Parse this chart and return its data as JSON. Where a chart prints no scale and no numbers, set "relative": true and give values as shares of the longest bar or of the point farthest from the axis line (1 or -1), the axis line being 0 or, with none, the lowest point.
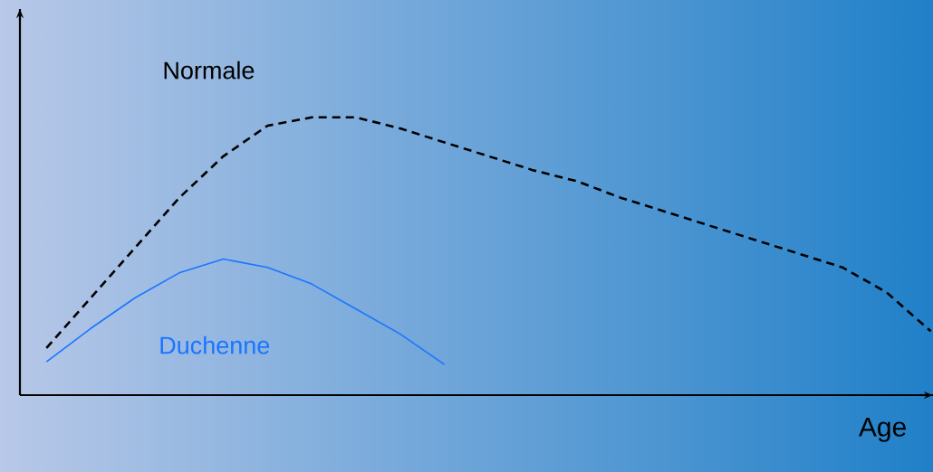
{
  "chart_data": {
    "type": "line",
    "relative": true,
    "xlabel": "Age",
    "legend": false,
    "categories": [
      null,
      null,
      null,
      null,
      null,
      null,
      null,
      null,
      null,
      null,
      null,
      null,
      null,
      null,
      null,
      null,
      null,
      null,
      null,
      null,
      null
    ],
    "series": [
      {
        "name": "Normale",
        "color": "#000000",
        "line_style": "dashed",
        "values": [
          0.17,
          0.35,
          0.53,
          0.71,
          0.86,
          0.97,
          1,
          1,
          0.96,
          0.91,
          0.86,
          0.81,
          0.77,
          0.71,
          0.66,
          0.61,
          0.56,
          0.51,
          0.46,
          0.37,
          0.23
        ]
      },
      {
        "name": "Duchenne",
        "color": "#1a75ff",
        "line_style": "solid",
        "values": [
          0.12,
          0.24,
          0.35,
          0.44,
          0.49,
          0.46,
          0.4,
          0.31,
          0.22,
          0.11,
          null,
          null,
          null,
          null,
          null,
          null,
          null,
          null,
          null,
          null,
          null
        ]
      }
    ]
  }
}
